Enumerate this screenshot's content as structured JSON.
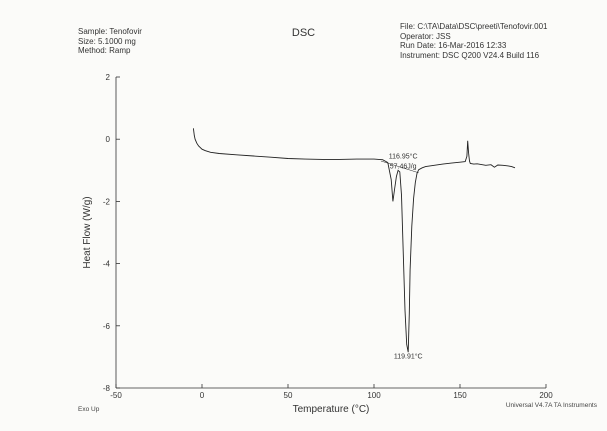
{
  "header": {
    "sample": "Sample: Tenofovir",
    "size": "Size:  5.1000 mg",
    "method": "Method: Ramp",
    "file": "File: C:\\TA\\Data\\DSC\\preeti\\Tenofovir.001",
    "operator": "Operator: JSS",
    "run_date": "Run Date: 16-Mar-2016 12:33",
    "instrument": "Instrument: DSC Q200 V24.4 Build 116"
  },
  "footer": {
    "exo_up": "Exo Up",
    "software": "Universal V4.7A TA Instruments"
  },
  "chart_data": {
    "type": "line",
    "title": "DSC",
    "xlabel": "Temperature (°C)",
    "ylabel": "Heat Flow (W/g)",
    "xlim": [
      -50,
      200
    ],
    "ylim": [
      -8,
      2
    ],
    "xticks": [
      -50,
      0,
      50,
      100,
      150,
      200
    ],
    "yticks": [
      2,
      0,
      -2,
      -4,
      -6,
      -8
    ],
    "grid": false,
    "series": [
      {
        "x": [
          -5,
          -4.5,
          -4,
          -3,
          -2,
          0,
          2,
          5,
          10,
          20,
          30,
          40,
          50,
          60,
          70,
          80,
          90,
          100,
          105,
          108,
          110,
          111,
          112,
          113,
          114,
          115,
          116,
          117,
          118,
          119,
          119.9,
          120.5,
          121,
          122,
          123,
          124,
          125,
          126,
          128,
          130,
          135,
          140,
          145,
          150,
          153,
          154,
          154.5,
          155,
          155.5,
          156,
          158,
          160,
          165,
          168,
          170,
          172,
          175,
          178,
          180,
          182
        ],
        "y": [
          0.35,
          0.12,
          0.0,
          -0.13,
          -0.22,
          -0.32,
          -0.37,
          -0.42,
          -0.46,
          -0.5,
          -0.54,
          -0.58,
          -0.62,
          -0.64,
          -0.65,
          -0.65,
          -0.64,
          -0.64,
          -0.66,
          -0.75,
          -1.3,
          -2.0,
          -1.6,
          -1.2,
          -1.0,
          -1.05,
          -1.8,
          -3.6,
          -5.5,
          -6.6,
          -6.85,
          -5.6,
          -4.2,
          -2.8,
          -1.9,
          -1.4,
          -1.1,
          -0.98,
          -0.92,
          -0.88,
          -0.84,
          -0.8,
          -0.77,
          -0.74,
          -0.72,
          -0.55,
          -0.05,
          -0.45,
          -0.7,
          -0.78,
          -0.8,
          -0.79,
          -0.84,
          -0.82,
          -0.9,
          -0.83,
          -0.84,
          -0.86,
          -0.88,
          -0.92
        ]
      },
      {
        "x": [
          104,
          126
        ],
        "y": [
          -0.7,
          -1.08
        ]
      }
    ],
    "annotations": [
      {
        "text": "116.95°C",
        "x": 116.95,
        "y": -0.62
      },
      {
        "text": "57.46J/g",
        "x": 116.95,
        "y": -0.95
      },
      {
        "text": "119.91°C",
        "x": 119.91,
        "y": -7.05
      }
    ]
  }
}
